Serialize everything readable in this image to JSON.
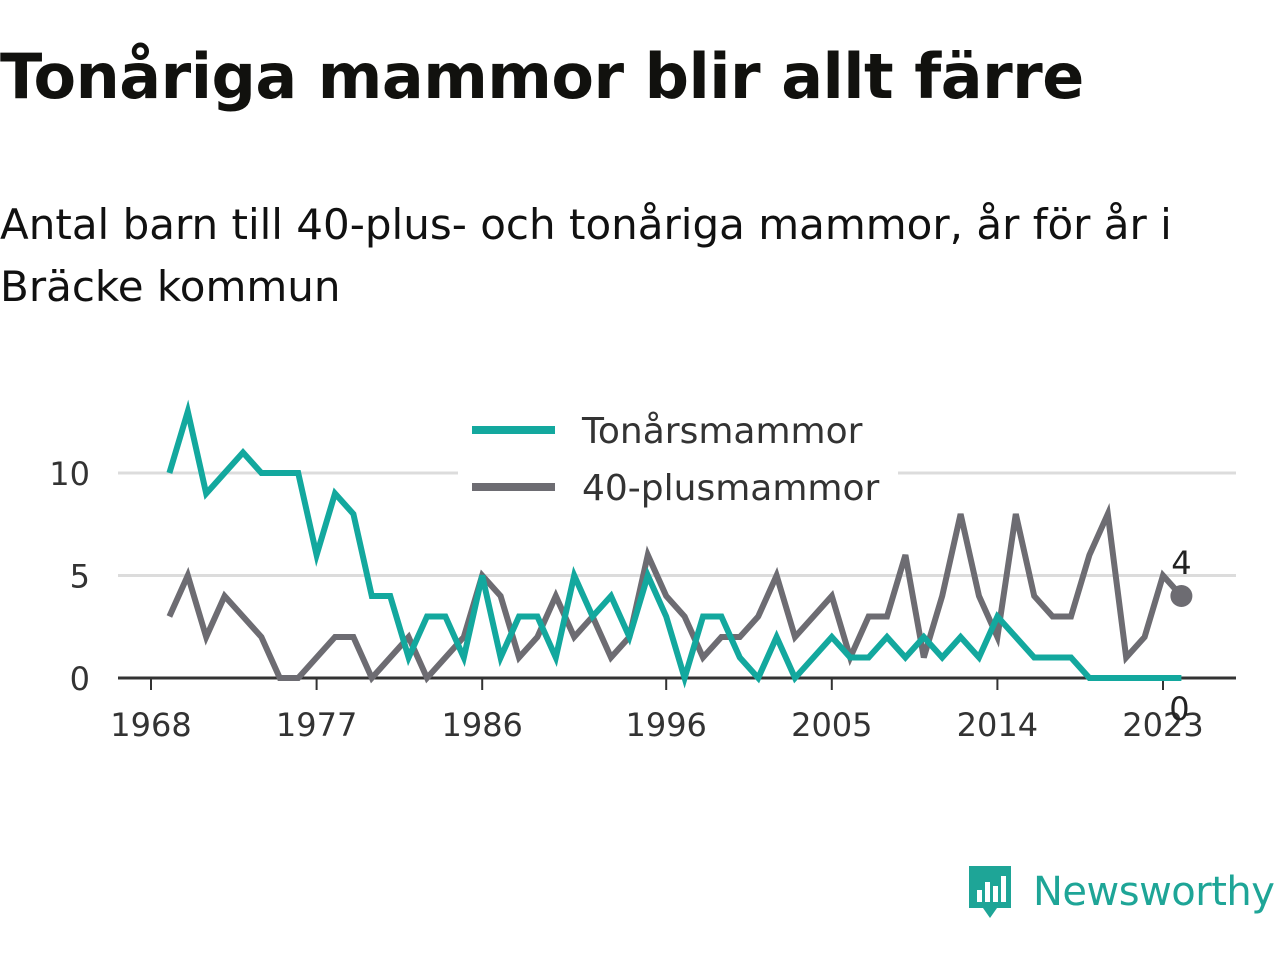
{
  "title": "Tonåriga mammor blir allt färre",
  "subtitle": "Antal barn till 40-plus- och tonåriga mammor, år för år i Bräcke kommun",
  "brand": {
    "name": "Newsworthy",
    "icon": "newsworthy-logo-icon",
    "color": "#1ea597"
  },
  "chart_data": {
    "type": "line",
    "title": "Tonåriga mammor blir allt färre",
    "x_ticks": [
      1968,
      1977,
      1986,
      1996,
      2005,
      2014,
      2023
    ],
    "y_ticks": [
      0,
      5,
      10
    ],
    "xlim": [
      1968,
      2024
    ],
    "ylim": [
      0,
      13
    ],
    "grid": true,
    "legend_position": "top-center",
    "x": [
      1969,
      1970,
      1971,
      1972,
      1973,
      1974,
      1975,
      1976,
      1977,
      1978,
      1979,
      1980,
      1981,
      1982,
      1983,
      1984,
      1985,
      1986,
      1987,
      1988,
      1989,
      1990,
      1991,
      1992,
      1993,
      1994,
      1995,
      1996,
      1997,
      1998,
      1999,
      2000,
      2001,
      2002,
      2003,
      2004,
      2005,
      2006,
      2007,
      2008,
      2009,
      2010,
      2011,
      2012,
      2013,
      2014,
      2015,
      2016,
      2017,
      2018,
      2019,
      2020,
      2021,
      2022,
      2023,
      2024
    ],
    "series": [
      {
        "name": "Tonårsmammor",
        "color": "#13a89e",
        "values": [
          10,
          13,
          9,
          10,
          11,
          10,
          10,
          10,
          6,
          9,
          8,
          4,
          4,
          1,
          3,
          3,
          1,
          5,
          1,
          3,
          3,
          1,
          5,
          3,
          4,
          2,
          5,
          3,
          0,
          3,
          3,
          1,
          0,
          2,
          0,
          1,
          2,
          1,
          1,
          2,
          1,
          2,
          1,
          2,
          1,
          3,
          2,
          1,
          1,
          1,
          0,
          0,
          0,
          0,
          0,
          0
        ],
        "end_label": "0"
      },
      {
        "name": "40-plusmammor",
        "color": "#6d6c72",
        "values": [
          3,
          5,
          2,
          4,
          3,
          2,
          0,
          0,
          1,
          2,
          2,
          0,
          1,
          2,
          0,
          1,
          2,
          5,
          4,
          1,
          2,
          4,
          2,
          3,
          1,
          2,
          6,
          4,
          3,
          1,
          2,
          2,
          3,
          5,
          2,
          3,
          4,
          1,
          3,
          3,
          6,
          1,
          4,
          8,
          4,
          2,
          8,
          4,
          3,
          3,
          6,
          8,
          1,
          2,
          5,
          4
        ],
        "end_label": "4"
      }
    ]
  }
}
